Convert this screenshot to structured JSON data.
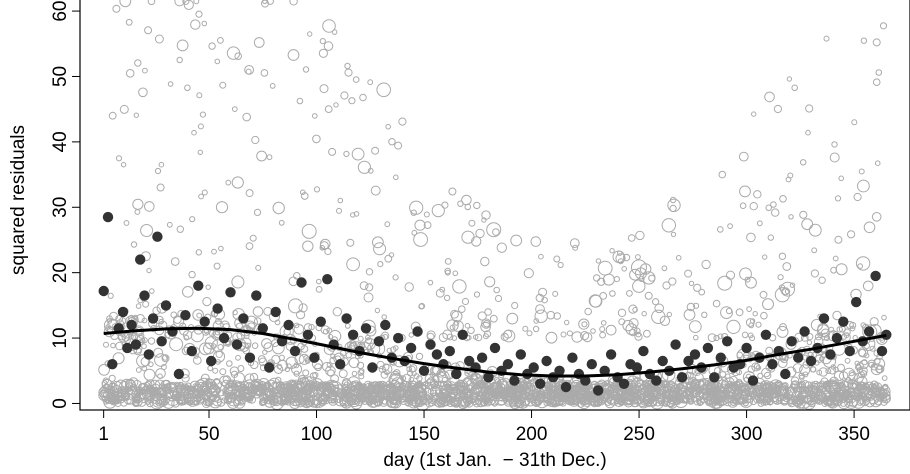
{
  "chart_data": {
    "type": "scatter",
    "title": "",
    "xlabel": "day (1st Jan.  − 31th Dec.)",
    "ylabel": "squared residuals",
    "xlim": [
      -10,
      376
    ],
    "ylim": [
      -1,
      62
    ],
    "x_ticks": [
      1,
      50,
      100,
      150,
      200,
      250,
      300,
      350
    ],
    "y_ticks": [
      0,
      10,
      20,
      30,
      40,
      50,
      60
    ],
    "grid": false,
    "legend": "none",
    "colors": {
      "raw_points": "#aaaaaa",
      "daily_means": "#333333",
      "smooth_curve": "#000000"
    },
    "series": [
      {
        "role": "all squared residuals (open circles, size varies)",
        "style": "open-circle",
        "approx_count": 3200,
        "values_summary": "dense band 0-12 with sparse points up to ~62 across days 1-365; dispersion larger in winter, smaller in summer"
      },
      {
        "role": "daily means (filled dark circles)",
        "style": "filled-circle",
        "x": [
          1,
          3,
          5,
          8,
          10,
          12,
          14,
          16,
          18,
          20,
          22,
          24,
          26,
          28,
          30,
          33,
          36,
          39,
          42,
          45,
          48,
          51,
          54,
          57,
          60,
          63,
          66,
          69,
          72,
          75,
          78,
          81,
          84,
          87,
          90,
          93,
          96,
          99,
          102,
          105,
          108,
          111,
          114,
          117,
          120,
          123,
          126,
          129,
          132,
          135,
          138,
          141,
          144,
          147,
          150,
          153,
          156,
          159,
          162,
          165,
          168,
          171,
          174,
          177,
          180,
          183,
          186,
          189,
          192,
          195,
          198,
          201,
          204,
          207,
          210,
          213,
          216,
          219,
          222,
          225,
          228,
          231,
          234,
          237,
          240,
          243,
          246,
          249,
          252,
          255,
          258,
          261,
          264,
          267,
          270,
          273,
          276,
          279,
          282,
          285,
          288,
          291,
          294,
          297,
          300,
          303,
          306,
          309,
          312,
          315,
          318,
          321,
          324,
          327,
          330,
          333,
          336,
          339,
          342,
          345,
          348,
          351,
          354,
          357,
          360,
          363,
          365
        ],
        "y": [
          17.2,
          28.5,
          6.0,
          11.5,
          14.0,
          8.5,
          12.0,
          9.0,
          22.0,
          16.5,
          7.5,
          13.0,
          25.5,
          9.5,
          15.0,
          11.0,
          4.5,
          13.5,
          8.0,
          18.0,
          12.5,
          6.5,
          14.5,
          10.0,
          17.0,
          9.0,
          13.0,
          7.0,
          16.5,
          11.5,
          5.5,
          14.0,
          9.5,
          12.0,
          8.0,
          18.5,
          10.5,
          7.0,
          12.5,
          19.0,
          9.0,
          6.0,
          13.0,
          10.5,
          8.0,
          11.5,
          5.5,
          9.5,
          12.0,
          7.0,
          10.0,
          6.5,
          8.5,
          11.0,
          5.0,
          9.0,
          7.5,
          6.0,
          8.0,
          4.5,
          10.5,
          6.5,
          5.5,
          7.0,
          4.0,
          8.5,
          5.0,
          6.0,
          3.5,
          7.5,
          4.5,
          5.5,
          3.0,
          6.5,
          4.0,
          5.0,
          2.5,
          7.0,
          4.5,
          3.5,
          6.0,
          2.0,
          5.0,
          7.5,
          4.0,
          3.0,
          6.0,
          5.5,
          8.0,
          4.5,
          3.5,
          6.5,
          5.0,
          9.0,
          4.0,
          6.5,
          7.5,
          5.5,
          8.5,
          4.0,
          7.0,
          9.5,
          5.5,
          6.0,
          8.5,
          3.5,
          7.0,
          10.5,
          6.0,
          8.0,
          4.5,
          9.5,
          7.0,
          11.0,
          6.5,
          8.5,
          13.0,
          7.5,
          10.0,
          12.5,
          8.0,
          15.5,
          9.5,
          11.0,
          19.5,
          8.0,
          10.5
        ]
      },
      {
        "role": "smooth fit",
        "style": "line",
        "x": [
          1,
          15,
          30,
          45,
          60,
          75,
          90,
          105,
          120,
          135,
          150,
          165,
          180,
          195,
          210,
          225,
          240,
          255,
          270,
          285,
          300,
          315,
          330,
          345,
          365
        ],
        "y": [
          10.7,
          11.1,
          11.4,
          11.5,
          11.3,
          10.7,
          9.8,
          8.8,
          7.8,
          6.9,
          6.1,
          5.4,
          4.8,
          4.4,
          4.2,
          4.2,
          4.4,
          4.8,
          5.3,
          5.9,
          6.6,
          7.5,
          8.3,
          9.2,
          10.4
        ]
      }
    ]
  }
}
